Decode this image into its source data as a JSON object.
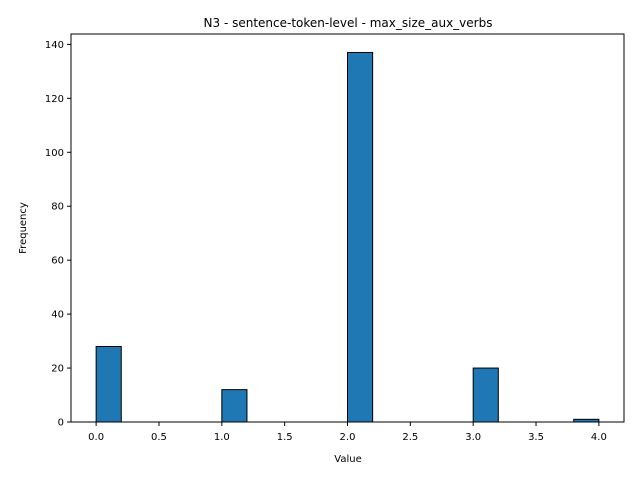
{
  "chart_data": {
    "type": "bar",
    "title": "N3 - sentence-token-level - max_size_aux_verbs",
    "xlabel": "Value",
    "ylabel": "Frequency",
    "xlim": [
      -0.2,
      4.2
    ],
    "ylim": [
      0,
      143.85
    ],
    "x_ticks": [
      "0.0",
      "0.5",
      "1.0",
      "1.5",
      "2.0",
      "2.5",
      "3.0",
      "3.5",
      "4.0"
    ],
    "y_ticks": [
      "0",
      "20",
      "40",
      "60",
      "80",
      "100",
      "120",
      "140"
    ],
    "bin_width": 0.2,
    "bins": [
      {
        "x_start": 0.0,
        "value": 28
      },
      {
        "x_start": 1.0,
        "value": 12
      },
      {
        "x_start": 2.0,
        "value": 137
      },
      {
        "x_start": 3.0,
        "value": 20
      },
      {
        "x_start": 3.8,
        "value": 1
      }
    ],
    "bar_color": "#1f77b4",
    "edge_color": "#000000",
    "grid": false,
    "legend": "none"
  }
}
